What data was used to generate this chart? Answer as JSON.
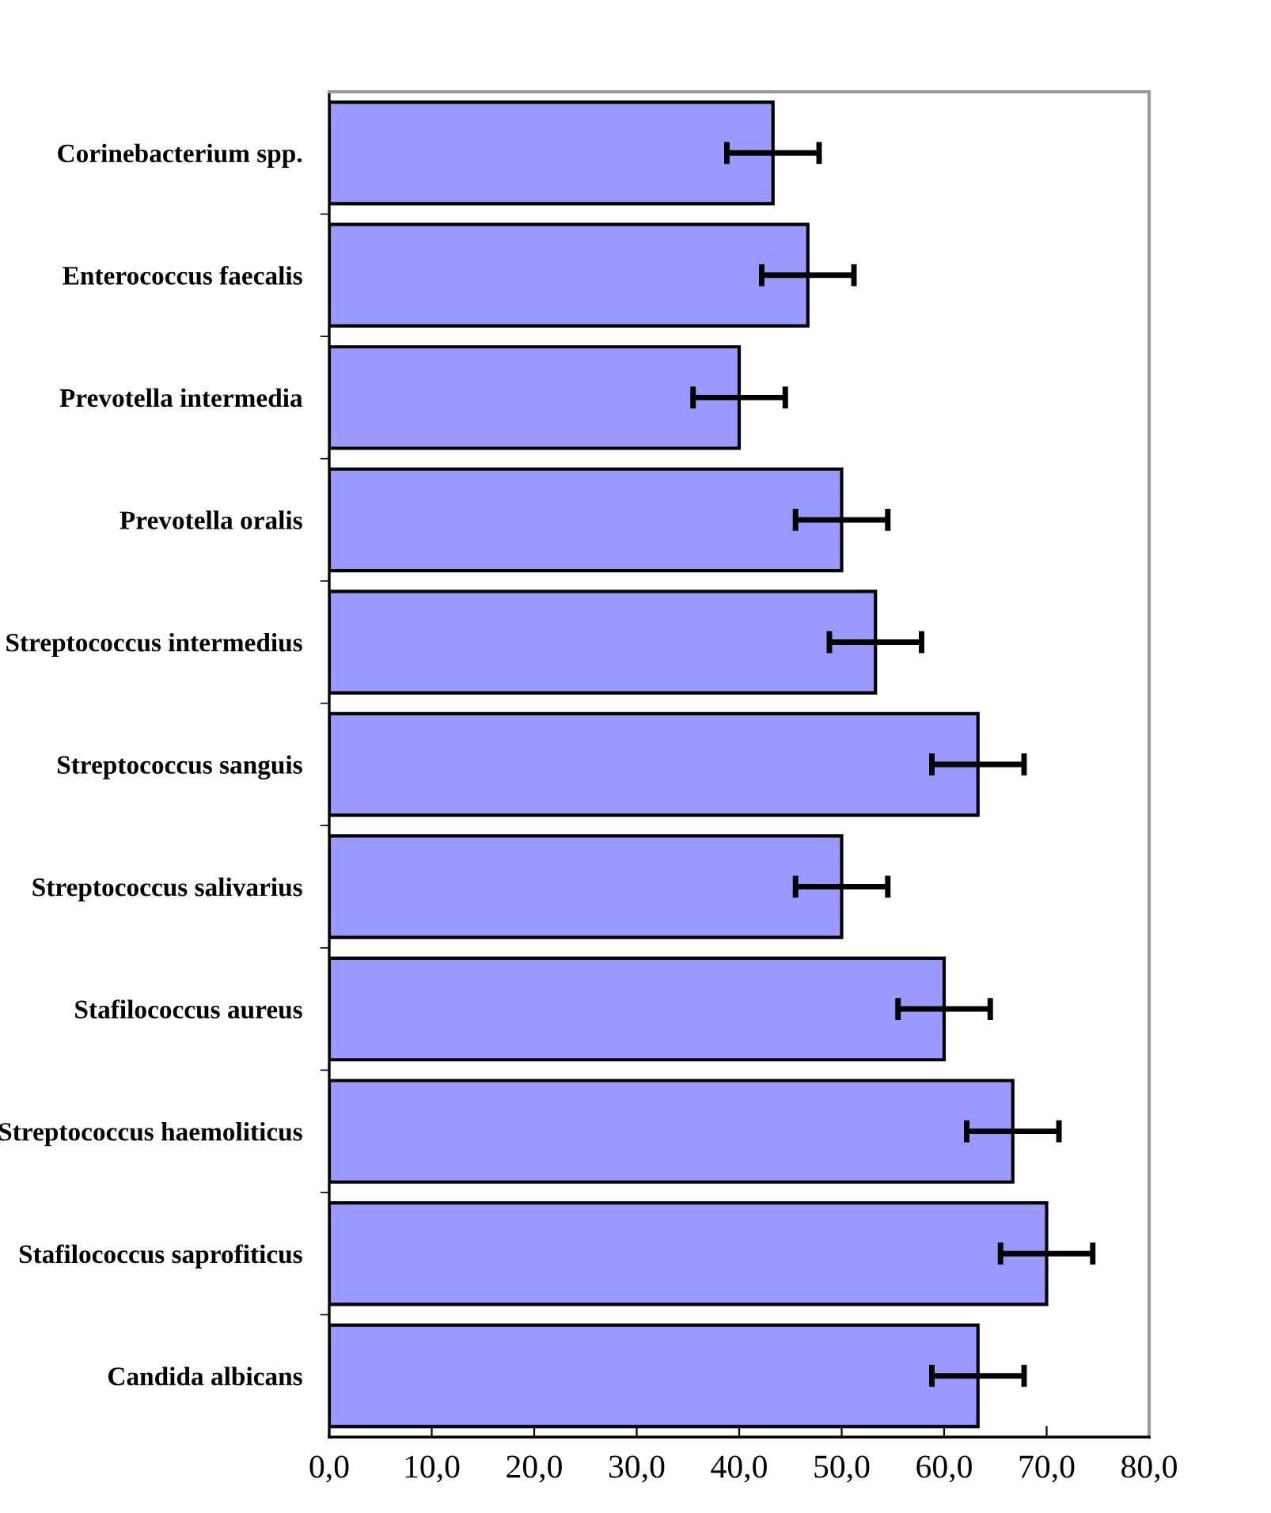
{
  "chart_data": {
    "type": "bar",
    "orientation": "horizontal",
    "categories": [
      "Corinebacterium spp.",
      "Enterococcus faecalis",
      "Prevotella intermedia",
      "Prevotella oralis",
      "Streptococcus intermedius",
      "Streptococcus sanguis",
      "Streptococcus salivarius",
      "Stafilococcus aureus",
      "Streptococcus haemoliticus",
      "Stafilococcus saprofiticus",
      "Candida albicans"
    ],
    "values": [
      43.3,
      46.7,
      40.0,
      50.0,
      53.3,
      63.3,
      50.0,
      60.0,
      66.7,
      70.0,
      63.3
    ],
    "errors": [
      4.5,
      4.5,
      4.5,
      4.5,
      4.5,
      4.5,
      4.5,
      4.5,
      4.5,
      4.5,
      4.5
    ],
    "color": "#9999ff",
    "xlim": [
      0,
      80
    ],
    "xticks": [
      {
        "value": 0,
        "label": "0,0"
      },
      {
        "value": 10,
        "label": "10,0"
      },
      {
        "value": 20,
        "label": "20,0"
      },
      {
        "value": 30,
        "label": "30,0"
      },
      {
        "value": 40,
        "label": "40,0"
      },
      {
        "value": 50,
        "label": "50,0"
      },
      {
        "value": 60,
        "label": "60,0"
      },
      {
        "value": 70,
        "label": "70,0"
      },
      {
        "value": 80,
        "label": "80,0"
      }
    ],
    "grid": false
  }
}
